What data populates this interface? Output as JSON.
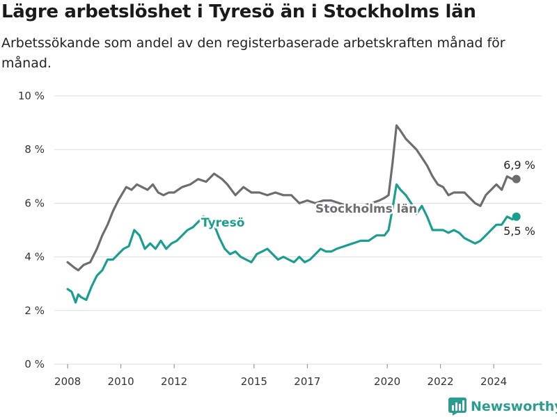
{
  "header": {
    "title": "Lägre arbetslöshet i Tyresö än i Stockholms län",
    "subtitle": "Arbetssökande som andel av den registerbaserade arbetskraften månad för månad."
  },
  "brand": {
    "name": "Newsworthy",
    "icon": "bar-chart-logo-icon",
    "color": "#2a9d8f"
  },
  "chart_data": {
    "type": "line",
    "title": "Lägre arbetslöshet i Tyresö än i Stockholms län",
    "subtitle": "Arbetssökande som andel av den registerbaserade arbetskraften månad för månad.",
    "xlabel": "",
    "ylabel": "",
    "ylim": [
      0,
      10
    ],
    "xlim": [
      2007.5,
      2025.8
    ],
    "y_ticks": [
      {
        "value": 0,
        "label": "0 %"
      },
      {
        "value": 2,
        "label": "2 %"
      },
      {
        "value": 4,
        "label": "4 %"
      },
      {
        "value": 6,
        "label": "6 %"
      },
      {
        "value": 8,
        "label": "8 %"
      },
      {
        "value": 10,
        "label": "10 %"
      }
    ],
    "x_ticks": [
      {
        "value": 2008,
        "label": "2008"
      },
      {
        "value": 2010,
        "label": "2010"
      },
      {
        "value": 2012,
        "label": "2012"
      },
      {
        "value": 2015,
        "label": "2015"
      },
      {
        "value": 2017,
        "label": "2017"
      },
      {
        "value": 2020,
        "label": "2020"
      },
      {
        "value": 2022,
        "label": "2022"
      },
      {
        "value": 2024,
        "label": "2024"
      }
    ],
    "grid": true,
    "legend": "none",
    "series": [
      {
        "name": "Stockholms län",
        "color": "#6d6d71",
        "end_label": "6,9 %",
        "x": [
          2008.0,
          2008.25,
          2008.4,
          2008.6,
          2008.85,
          2009.1,
          2009.3,
          2009.5,
          2009.7,
          2009.9,
          2010.2,
          2010.4,
          2010.6,
          2010.8,
          2011.0,
          2011.2,
          2011.4,
          2011.6,
          2011.8,
          2012.0,
          2012.3,
          2012.6,
          2012.9,
          2013.2,
          2013.5,
          2013.8,
          2014.0,
          2014.3,
          2014.6,
          2014.9,
          2015.2,
          2015.5,
          2015.8,
          2016.1,
          2016.4,
          2016.7,
          2017.0,
          2017.3,
          2017.6,
          2017.9,
          2018.2,
          2018.5,
          2018.8,
          2019.1,
          2019.4,
          2019.7,
          2019.9,
          2020.05,
          2020.2,
          2020.35,
          2020.5,
          2020.7,
          2020.9,
          2021.1,
          2021.3,
          2021.5,
          2021.7,
          2021.9,
          2022.1,
          2022.3,
          2022.5,
          2022.7,
          2022.9,
          2023.1,
          2023.3,
          2023.5,
          2023.7,
          2023.9,
          2024.1,
          2024.3,
          2024.5,
          2024.7,
          2024.85
        ],
        "y": [
          3.8,
          3.6,
          3.5,
          3.7,
          3.8,
          4.3,
          4.8,
          5.2,
          5.7,
          6.1,
          6.6,
          6.5,
          6.7,
          6.6,
          6.5,
          6.7,
          6.4,
          6.3,
          6.4,
          6.4,
          6.6,
          6.7,
          6.9,
          6.8,
          7.1,
          6.9,
          6.7,
          6.3,
          6.6,
          6.4,
          6.4,
          6.3,
          6.4,
          6.3,
          6.3,
          6.0,
          6.1,
          6.0,
          6.1,
          6.1,
          6.0,
          5.9,
          5.8,
          5.9,
          6.0,
          6.1,
          6.2,
          6.3,
          7.5,
          8.9,
          8.7,
          8.4,
          8.2,
          8.0,
          7.7,
          7.4,
          7.0,
          6.7,
          6.6,
          6.3,
          6.4,
          6.4,
          6.4,
          6.2,
          6.0,
          5.9,
          6.3,
          6.5,
          6.7,
          6.5,
          7.0,
          6.9,
          6.9
        ]
      },
      {
        "name": "Tyresö",
        "color": "#1a9e8f",
        "end_label": "5,5 %",
        "x": [
          2008.0,
          2008.15,
          2008.3,
          2008.4,
          2008.5,
          2008.7,
          2008.9,
          2009.1,
          2009.3,
          2009.5,
          2009.7,
          2009.9,
          2010.1,
          2010.3,
          2010.5,
          2010.7,
          2010.9,
          2011.1,
          2011.3,
          2011.5,
          2011.7,
          2011.9,
          2012.1,
          2012.3,
          2012.5,
          2012.7,
          2012.9,
          2013.1,
          2013.3,
          2013.5,
          2013.7,
          2013.9,
          2014.1,
          2014.3,
          2014.5,
          2014.7,
          2014.9,
          2015.1,
          2015.3,
          2015.5,
          2015.7,
          2015.9,
          2016.1,
          2016.3,
          2016.5,
          2016.7,
          2016.9,
          2017.1,
          2017.3,
          2017.5,
          2017.7,
          2017.9,
          2018.1,
          2018.4,
          2018.7,
          2019.0,
          2019.3,
          2019.6,
          2019.9,
          2020.05,
          2020.2,
          2020.35,
          2020.5,
          2020.7,
          2020.9,
          2021.1,
          2021.3,
          2021.5,
          2021.7,
          2021.9,
          2022.1,
          2022.3,
          2022.5,
          2022.7,
          2022.9,
          2023.1,
          2023.3,
          2023.5,
          2023.7,
          2023.9,
          2024.1,
          2024.3,
          2024.5,
          2024.7,
          2024.85
        ],
        "y": [
          2.8,
          2.7,
          2.3,
          2.6,
          2.5,
          2.4,
          2.9,
          3.3,
          3.5,
          3.9,
          3.9,
          4.1,
          4.3,
          4.4,
          5.0,
          4.8,
          4.3,
          4.5,
          4.3,
          4.6,
          4.3,
          4.5,
          4.6,
          4.8,
          5.0,
          5.1,
          5.3,
          5.5,
          5.4,
          5.2,
          4.7,
          4.3,
          4.1,
          4.2,
          4.0,
          3.9,
          3.8,
          4.1,
          4.2,
          4.3,
          4.1,
          3.9,
          4.0,
          3.9,
          3.8,
          4.0,
          3.8,
          3.9,
          4.1,
          4.3,
          4.2,
          4.2,
          4.3,
          4.4,
          4.5,
          4.6,
          4.6,
          4.8,
          4.8,
          5.0,
          5.8,
          6.7,
          6.5,
          6.3,
          6.0,
          5.6,
          5.9,
          5.5,
          5.0,
          5.0,
          5.0,
          4.9,
          5.0,
          4.9,
          4.7,
          4.6,
          4.5,
          4.6,
          4.8,
          5.0,
          5.2,
          5.2,
          5.5,
          5.4,
          5.5
        ]
      }
    ]
  }
}
